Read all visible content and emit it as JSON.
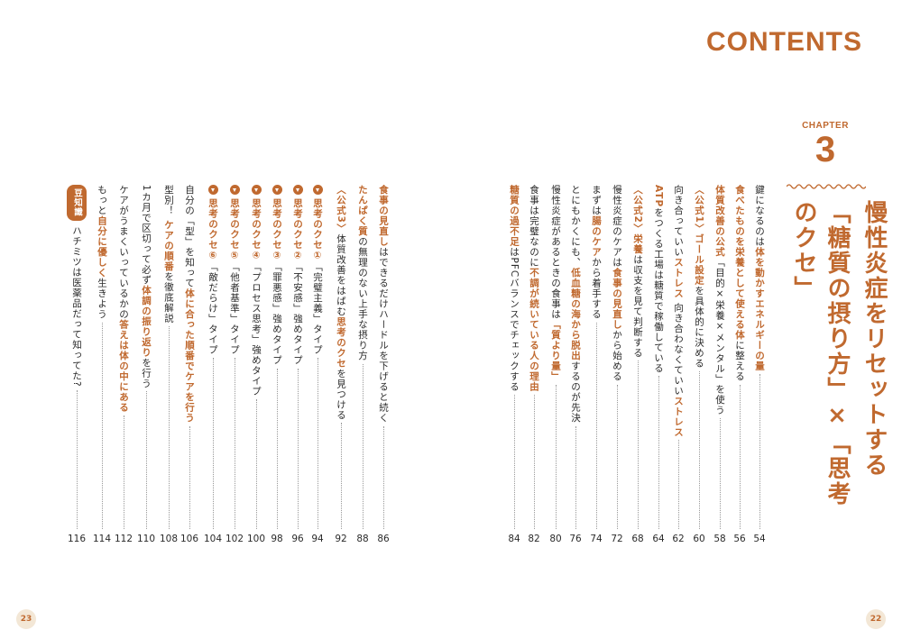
{
  "title": "CONTENTS",
  "chapter": {
    "label": "CHAPTER",
    "number": "3",
    "title_lines": [
      "慢性炎症をリセットする",
      "「糖質の摂り方」×「思考のクセ」"
    ]
  },
  "accent_color": "#c0692f",
  "right_entries": [
    {
      "parts": [
        {
          "t": "鍵になるのは"
        },
        {
          "t": "体を動かすエネルギーの量",
          "h": true
        }
      ],
      "page": "54"
    },
    {
      "parts": [
        {
          "t": "食べたものを栄養として使える体",
          "h": true
        },
        {
          "t": "に整える"
        }
      ],
      "page": "56"
    },
    {
      "parts": [
        {
          "t": "体質改善の公式",
          "h": true
        },
        {
          "t": "「目的×栄養×メンタル」を使う"
        }
      ],
      "page": "58"
    },
    {
      "parts": [
        {
          "t": "〈公式1〉ゴール設定",
          "h": true
        },
        {
          "t": "を具体的に決める"
        }
      ],
      "page": "60"
    },
    {
      "parts": [
        {
          "t": "向き合っていい"
        },
        {
          "t": "ストレス",
          "h": true
        },
        {
          "t": " 向き合わなくていい"
        },
        {
          "t": "ストレス",
          "h": true
        }
      ],
      "page": "62"
    },
    {
      "parts": [
        {
          "t": "ATP",
          "h": true
        },
        {
          "t": "をつくる工場は糖質で稼働している"
        }
      ],
      "page": "64"
    },
    {
      "parts": [
        {
          "t": "〈公式2〉栄養",
          "h": true
        },
        {
          "t": "は収支を見て判断する"
        }
      ],
      "page": "68"
    },
    {
      "parts": [
        {
          "t": "慢性炎症のケアは"
        },
        {
          "t": "食事の見直し",
          "h": true
        },
        {
          "t": "から始める"
        }
      ],
      "page": "72"
    },
    {
      "parts": [
        {
          "t": "まずは"
        },
        {
          "t": "腸のケア",
          "h": true
        },
        {
          "t": "から着手する"
        }
      ],
      "page": "74"
    },
    {
      "parts": [
        {
          "t": "とにもかくにも、"
        },
        {
          "t": "低血糖の海から脱出",
          "h": true
        },
        {
          "t": "するのが先決"
        }
      ],
      "page": "76"
    },
    {
      "parts": [
        {
          "t": "慢性炎症があるときの食事は"
        },
        {
          "t": "「質より量」",
          "h": true
        }
      ],
      "page": "80"
    },
    {
      "parts": [
        {
          "t": "食事は完璧なのに"
        },
        {
          "t": "不調が続いている人の理由",
          "h": true
        }
      ],
      "page": "82"
    },
    {
      "parts": [
        {
          "t": "糖質の過不足",
          "h": true
        },
        {
          "t": "はPFCバランスでチェックする"
        }
      ],
      "page": "84"
    }
  ],
  "left_entries": [
    {
      "parts": [
        {
          "t": "食事の見直し",
          "h": true
        },
        {
          "t": "はできるだけハードルを下げると続く"
        }
      ],
      "page": "86"
    },
    {
      "parts": [
        {
          "t": "たんぱく質",
          "h": true
        },
        {
          "t": "の無理のない上手な摂り方"
        }
      ],
      "page": "88"
    },
    {
      "parts": [
        {
          "t": "〈公式3〉",
          "h": true
        },
        {
          "t": "体質改善をはばむ"
        },
        {
          "t": "思考のクセ",
          "h": true
        },
        {
          "t": "を見つける"
        }
      ],
      "page": "92"
    },
    {
      "mark": true,
      "parts": [
        {
          "t": "思考のクセ①",
          "h": true
        },
        {
          "t": "「完璧主義」タイプ"
        }
      ],
      "page": "94"
    },
    {
      "mark": true,
      "parts": [
        {
          "t": "思考のクセ②",
          "h": true
        },
        {
          "t": "「不安感」強めタイプ"
        }
      ],
      "page": "96"
    },
    {
      "mark": true,
      "parts": [
        {
          "t": "思考のクセ③",
          "h": true
        },
        {
          "t": "「罪悪感」強めタイプ"
        }
      ],
      "page": "98"
    },
    {
      "mark": true,
      "parts": [
        {
          "t": "思考のクセ④",
          "h": true
        },
        {
          "t": "「プロセス思考」強めタイプ"
        }
      ],
      "page": "100"
    },
    {
      "mark": true,
      "parts": [
        {
          "t": "思考のクセ⑤",
          "h": true
        },
        {
          "t": "「他者基準」タイプ"
        }
      ],
      "page": "102"
    },
    {
      "mark": true,
      "parts": [
        {
          "t": "思考のクセ⑥",
          "h": true
        },
        {
          "t": "「敵だらけ」タイプ"
        }
      ],
      "page": "104"
    },
    {
      "parts": [
        {
          "t": "自分の「型」を知って"
        },
        {
          "t": "体に合った順番でケアを行う",
          "h": true
        }
      ],
      "page": "106"
    },
    {
      "parts": [
        {
          "t": "型別！ "
        },
        {
          "t": "ケアの順番",
          "h": true
        },
        {
          "t": "を徹底解説"
        }
      ],
      "page": "108"
    },
    {
      "parts": [
        {
          "t": "1カ月で区切って必ず"
        },
        {
          "t": "体調の振り返り",
          "h": true
        },
        {
          "t": "を行う"
        }
      ],
      "page": "110"
    },
    {
      "parts": [
        {
          "t": "ケアがうまくいっているかの"
        },
        {
          "t": "答えは体の中にある",
          "h": true
        }
      ],
      "page": "112"
    },
    {
      "parts": [
        {
          "t": "もっと"
        },
        {
          "t": "自分に優しく",
          "h": true
        },
        {
          "t": "生きよう"
        }
      ],
      "page": "114"
    },
    {
      "badge": "豆知識",
      "parts": [
        {
          "t": "ハチミツは医薬品だって知ってた?"
        }
      ],
      "page": "116"
    }
  ],
  "folios": {
    "left": "23",
    "right": "22"
  }
}
